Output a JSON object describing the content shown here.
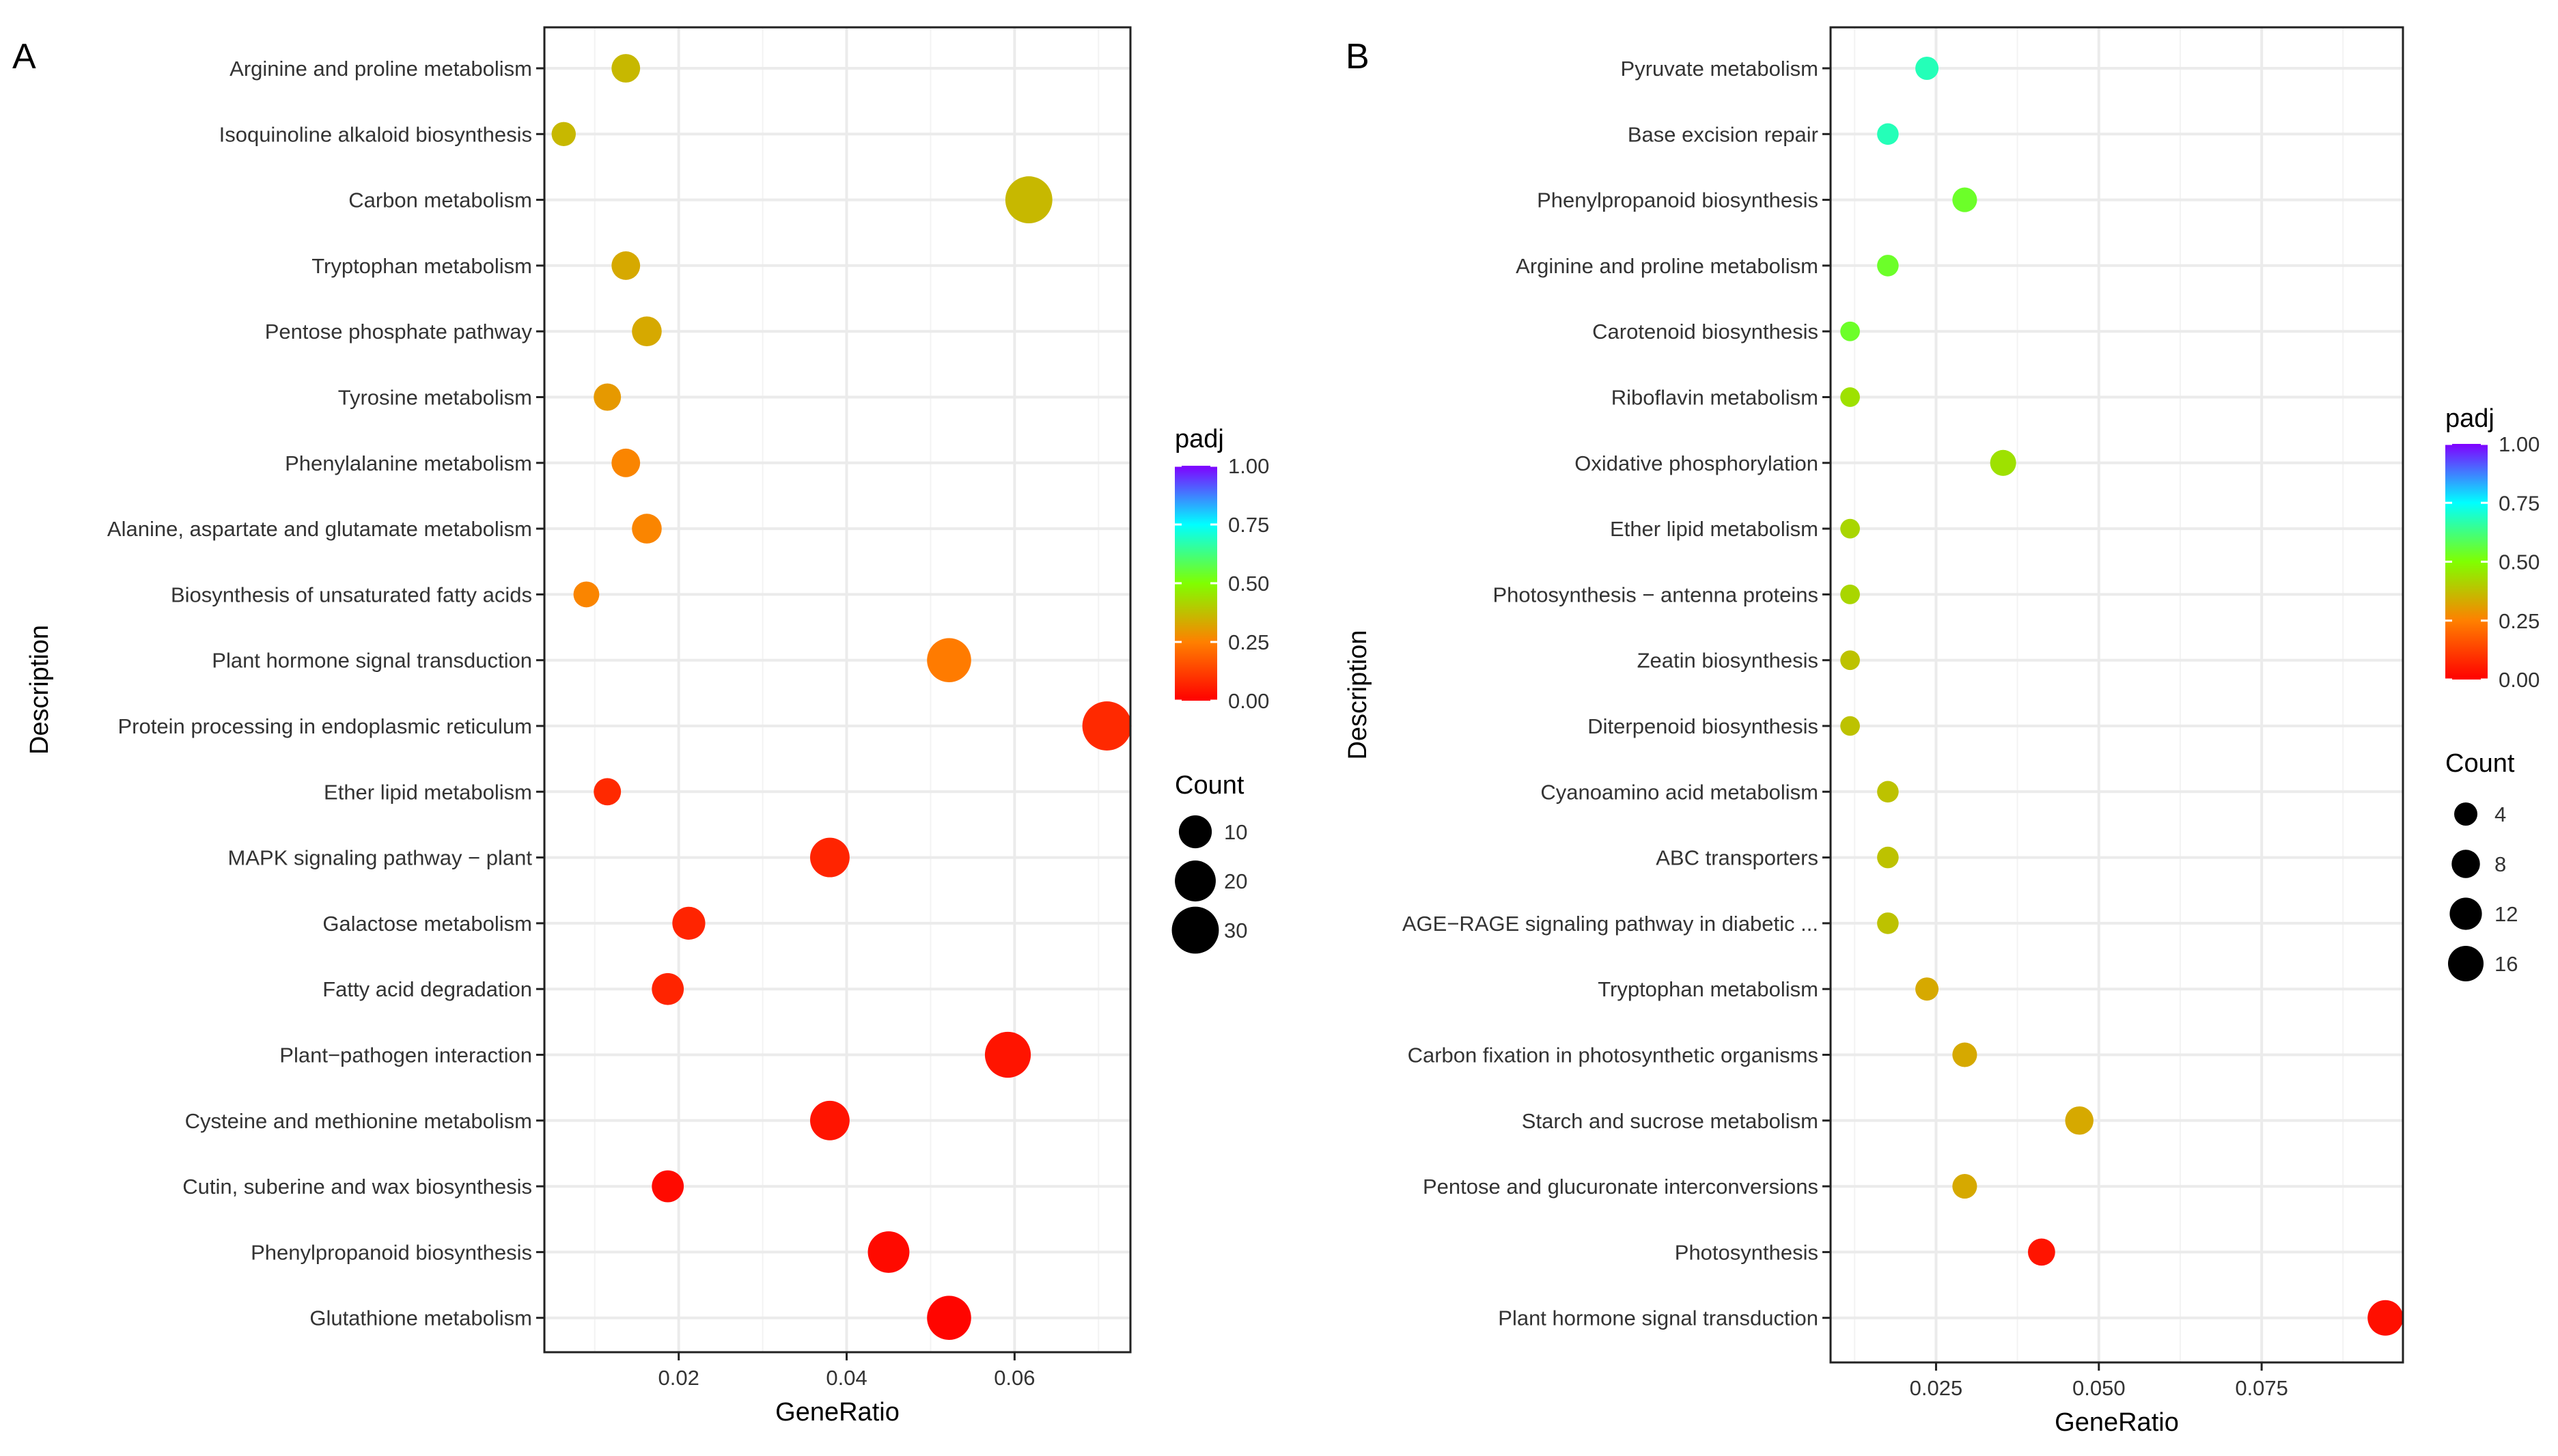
{
  "chart_data": [
    {
      "panel": "A",
      "type": "scatter",
      "xlabel": "GeneRatio",
      "ylabel": "Description",
      "xlim": [
        0.004,
        0.0738
      ],
      "xticks": [
        0.02,
        0.04,
        0.06
      ],
      "xtick_labels": [
        "0.02",
        "0.04",
        "0.06"
      ],
      "color_legend": {
        "title": "padj",
        "ticks": [
          1.0,
          0.75,
          0.5,
          0.25,
          0.0
        ],
        "labels": [
          "1.00",
          "0.75",
          "0.50",
          "0.25",
          "0.00"
        ]
      },
      "size_legend": {
        "title": "Count",
        "values": [
          10,
          20,
          30
        ],
        "labels": [
          "10",
          "20",
          "30"
        ]
      },
      "points": [
        {
          "label": "Arginine and proline metabolism",
          "x": 0.0137,
          "count": 6,
          "padj": 0.36
        },
        {
          "label": "Isoquinoline alkaloid biosynthesis",
          "x": 0.0063,
          "count": 3,
          "padj": 0.36
        },
        {
          "label": "Carbon metabolism",
          "x": 0.0617,
          "count": 30,
          "padj": 0.36
        },
        {
          "label": "Tryptophan metabolism",
          "x": 0.0137,
          "count": 6,
          "padj": 0.33
        },
        {
          "label": "Pentose phosphate pathway",
          "x": 0.0162,
          "count": 7,
          "padj": 0.33
        },
        {
          "label": "Tyrosine metabolism",
          "x": 0.0115,
          "count": 5,
          "padj": 0.3
        },
        {
          "label": "Phenylalanine metabolism",
          "x": 0.0137,
          "count": 6,
          "padj": 0.26
        },
        {
          "label": "Alanine, aspartate and glutamate metabolism",
          "x": 0.0162,
          "count": 7,
          "padj": 0.26
        },
        {
          "label": "Biosynthesis of unsaturated fatty acids",
          "x": 0.009,
          "count": 4,
          "padj": 0.26
        },
        {
          "label": "Plant hormone signal transduction",
          "x": 0.0522,
          "count": 25,
          "padj": 0.24
        },
        {
          "label": "Protein processing in endoplasmic reticulum",
          "x": 0.071,
          "count": 34,
          "padj": 0.08
        },
        {
          "label": "Ether lipid metabolism",
          "x": 0.0115,
          "count": 5,
          "padj": 0.08
        },
        {
          "label": "MAPK signaling pathway − plant",
          "x": 0.038,
          "count": 18,
          "padj": 0.07
        },
        {
          "label": "Galactose metabolism",
          "x": 0.0212,
          "count": 10,
          "padj": 0.07
        },
        {
          "label": "Fatty acid degradation",
          "x": 0.0187,
          "count": 9,
          "padj": 0.07
        },
        {
          "label": "Plant−pathogen interaction",
          "x": 0.0592,
          "count": 28,
          "padj": 0.04
        },
        {
          "label": "Cysteine and methionine metabolism",
          "x": 0.038,
          "count": 18,
          "padj": 0.04
        },
        {
          "label": "Cutin, suberine and wax biosynthesis",
          "x": 0.0187,
          "count": 9,
          "padj": 0.02
        },
        {
          "label": "Phenylpropanoid biosynthesis",
          "x": 0.045,
          "count": 21,
          "padj": 0.02
        },
        {
          "label": "Glutathione metabolism",
          "x": 0.0522,
          "count": 25,
          "padj": 0.01
        }
      ]
    },
    {
      "panel": "B",
      "type": "scatter",
      "xlabel": "GeneRatio",
      "ylabel": "Description",
      "xlim": [
        0.0088,
        0.0967
      ],
      "xticks": [
        0.025,
        0.05,
        0.075
      ],
      "xtick_labels": [
        "0.025",
        "0.050",
        "0.075"
      ],
      "color_legend": {
        "title": "padj",
        "ticks": [
          1.0,
          0.75,
          0.5,
          0.25,
          0.0
        ],
        "labels": [
          "1.00",
          "0.75",
          "0.50",
          "0.25",
          "0.00"
        ]
      },
      "size_legend": {
        "title": "Count",
        "values": [
          4,
          8,
          12,
          16
        ],
        "labels": [
          "4",
          "8",
          "12",
          "16"
        ]
      },
      "points": [
        {
          "label": "Pyruvate metabolism",
          "x": 0.0236,
          "count": 4,
          "padj": 0.68
        },
        {
          "label": "Base excision repair",
          "x": 0.0176,
          "count": 3,
          "padj": 0.68
        },
        {
          "label": "Phenylpropanoid biosynthesis",
          "x": 0.0294,
          "count": 5,
          "padj": 0.54
        },
        {
          "label": "Arginine and proline metabolism",
          "x": 0.0176,
          "count": 3,
          "padj": 0.54
        },
        {
          "label": "Carotenoid biosynthesis",
          "x": 0.0118,
          "count": 2,
          "padj": 0.54
        },
        {
          "label": "Riboflavin metabolism",
          "x": 0.0118,
          "count": 2,
          "padj": 0.44
        },
        {
          "label": "Oxidative phosphorylation",
          "x": 0.0353,
          "count": 6,
          "padj": 0.44
        },
        {
          "label": "Ether lipid metabolism",
          "x": 0.0118,
          "count": 2,
          "padj": 0.42
        },
        {
          "label": "Photosynthesis − antenna proteins",
          "x": 0.0118,
          "count": 2,
          "padj": 0.42
        },
        {
          "label": "Zeatin biosynthesis",
          "x": 0.0118,
          "count": 2,
          "padj": 0.38
        },
        {
          "label": "Diterpenoid biosynthesis",
          "x": 0.0118,
          "count": 2,
          "padj": 0.38
        },
        {
          "label": "Cyanoamino acid metabolism",
          "x": 0.0176,
          "count": 3,
          "padj": 0.38
        },
        {
          "label": "ABC transporters",
          "x": 0.0176,
          "count": 3,
          "padj": 0.38
        },
        {
          "label": "AGE−RAGE signaling pathway in diabetic ...",
          "x": 0.0176,
          "count": 3,
          "padj": 0.38
        },
        {
          "label": "Tryptophan metabolism",
          "x": 0.0236,
          "count": 4,
          "padj": 0.33
        },
        {
          "label": "Carbon fixation in photosynthetic organisms",
          "x": 0.0294,
          "count": 5,
          "padj": 0.33
        },
        {
          "label": "Starch and sucrose metabolism",
          "x": 0.047,
          "count": 8,
          "padj": 0.33
        },
        {
          "label": "Pentose and glucuronate interconversions",
          "x": 0.0294,
          "count": 5,
          "padj": 0.33
        },
        {
          "label": "Photosynthesis",
          "x": 0.0412,
          "count": 7,
          "padj": 0.04
        },
        {
          "label": "Plant hormone signal transduction",
          "x": 0.094,
          "count": 16,
          "padj": 0.03
        }
      ]
    }
  ],
  "panel_labels": [
    "A",
    "B"
  ],
  "colors": {
    "grid": "#ebebeb",
    "axis": "#222222",
    "text": "#333333",
    "gradient": [
      "#ff0000",
      "#ff8000",
      "#80ff00",
      "#00ffff",
      "#8000ff"
    ]
  }
}
